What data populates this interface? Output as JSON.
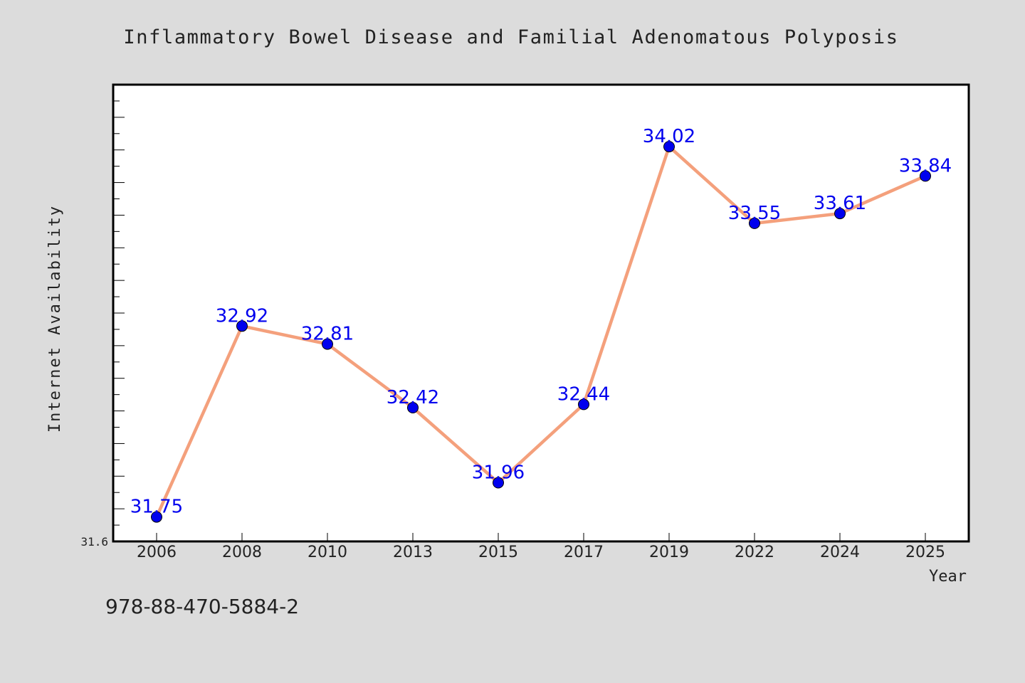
{
  "chart_data": {
    "type": "line",
    "title": "Inflammatory Bowel Disease and Familial Adenomatous Polyposis",
    "xlabel": "Year",
    "ylabel": "Internet Availability",
    "categories": [
      "2006",
      "2008",
      "2010",
      "2013",
      "2015",
      "2017",
      "2019",
      "2022",
      "2024",
      "2025"
    ],
    "series": [
      {
        "values": [
          31.75,
          32.92,
          32.81,
          32.42,
          31.96,
          32.44,
          34.02,
          33.55,
          33.61,
          33.84
        ]
      }
    ],
    "data_labels": [
      "31.75",
      "32.92",
      "32.81",
      "32.42",
      "31.96",
      "32.44",
      "34.02",
      "33.55",
      "33.61",
      "33.84"
    ],
    "ylim": [
      31.6,
      34.4
    ],
    "yticks_labeled": [
      "31.6"
    ],
    "grid": false,
    "legend": "none",
    "colors": {
      "background": "#dcdcdc",
      "plot_area": "#ffffff",
      "line": "#f4a07c",
      "marker": "#0000ee",
      "data_label": "#0000ee",
      "text": "#222222"
    }
  },
  "footer_text": "978-88-470-5884-2"
}
